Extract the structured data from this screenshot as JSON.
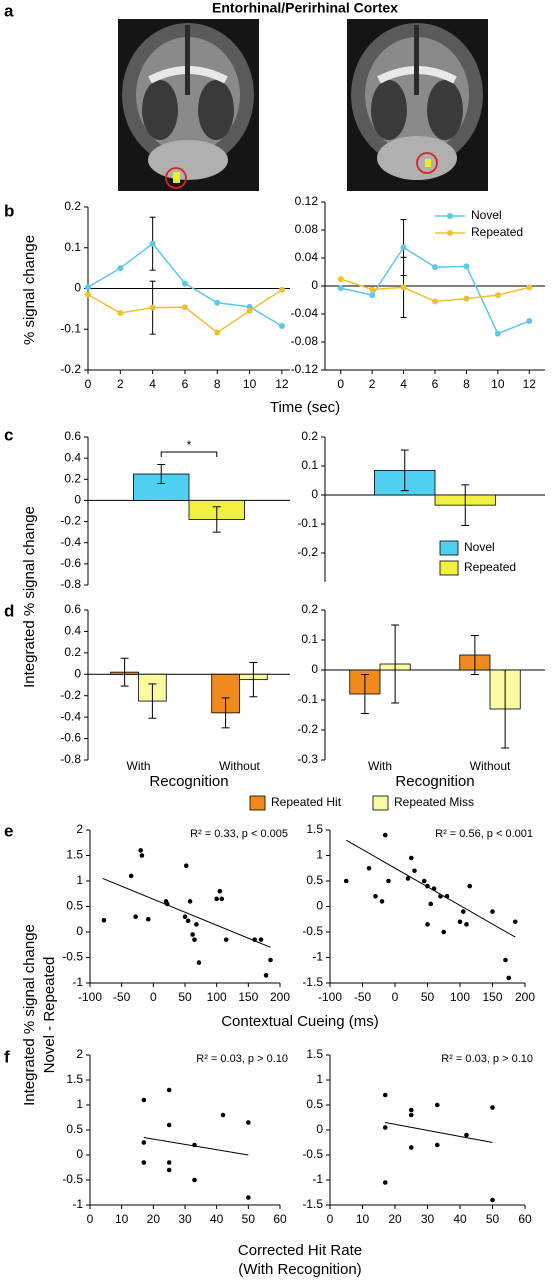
{
  "figure": {
    "title": "Entorhinal/Perirhinal Cortex",
    "panels": [
      "a",
      "b",
      "c",
      "d",
      "e",
      "f"
    ],
    "b_ylabel": "% signal change",
    "b_xlabel": "Time (sec)",
    "cd_ylabel": "Integrated % signal change",
    "ef_ylabel": [
      "Integrated % signal change",
      "Novel - Repeated"
    ],
    "e_xlabel": "Contextual Cueing (ms)",
    "f_xlabel": [
      "Corrected Hit Rate",
      "(With Recognition)"
    ]
  },
  "chart_data": [
    {
      "type": "line",
      "x": [
        0,
        2,
        4,
        6,
        8,
        10,
        12
      ],
      "xlim": [
        0,
        12.5
      ],
      "xticks": [
        0,
        2,
        4,
        6,
        8,
        10,
        12
      ],
      "ylim": [
        -0.2,
        0.2
      ],
      "yticks": [
        -0.2,
        -0.1,
        0,
        0.1,
        0.2
      ],
      "series": [
        {
          "color": "#5bc8e8",
          "values": [
            0.003,
            0.05,
            0.11,
            0.012,
            -0.035,
            -0.045,
            -0.092
          ],
          "errors": [
            null,
            null,
            0.065,
            null,
            null,
            null,
            null
          ]
        },
        {
          "color": "#f0c030",
          "values": [
            -0.015,
            -0.06,
            -0.047,
            -0.046,
            -0.108,
            -0.055,
            -0.003
          ],
          "errors": [
            null,
            null,
            0.065,
            null,
            null,
            null,
            null
          ]
        }
      ]
    },
    {
      "type": "line",
      "x": [
        0,
        2,
        4,
        6,
        8,
        10,
        12
      ],
      "xlim": [
        -1,
        13
      ],
      "xticks": [
        0,
        2,
        4,
        6,
        8,
        10,
        12
      ],
      "ylim": [
        -0.12,
        0.12
      ],
      "yticks": [
        -0.12,
        -0.08,
        -0.04,
        0,
        0.04,
        0.08,
        0.12
      ],
      "legend": "upper right",
      "series": [
        {
          "name": "Novel",
          "color": "#5bc8e8",
          "values": [
            -0.003,
            -0.013,
            0.055,
            0.027,
            0.028,
            -0.068,
            -0.05
          ],
          "errors": [
            null,
            null,
            0.04,
            null,
            null,
            null,
            null
          ]
        },
        {
          "name": "Repeated",
          "color": "#f0c030",
          "values": [
            0.01,
            -0.005,
            -0.002,
            -0.022,
            -0.018,
            -0.013,
            -0.002
          ],
          "errors": [
            null,
            null,
            0.043,
            null,
            null,
            null,
            null
          ]
        }
      ]
    },
    {
      "type": "bar",
      "categories": [
        null
      ],
      "ylim": [
        -0.8,
        0.6
      ],
      "yticks": [
        -0.8,
        -0.6,
        -0.4,
        -0.2,
        0,
        0.2,
        0.4,
        0.6
      ],
      "significance": "*",
      "series": [
        {
          "color": "#4fd0f0",
          "values": [
            0.25
          ],
          "errors": [
            0.09
          ]
        },
        {
          "color": "#f0f040",
          "values": [
            -0.18
          ],
          "errors": [
            0.12
          ]
        }
      ]
    },
    {
      "type": "bar",
      "categories": [
        null
      ],
      "ylim": [
        -0.3,
        0.2
      ],
      "yticks": [
        -0.2,
        -0.1,
        0,
        0.1,
        0.2
      ],
      "legend": "lower right",
      "series": [
        {
          "name": "Novel",
          "color": "#4fd0f0",
          "values": [
            0.085
          ],
          "errors": [
            0.07
          ]
        },
        {
          "name": "Repeated",
          "color": "#f0f040",
          "values": [
            -0.035
          ],
          "errors": [
            0.07
          ]
        }
      ]
    },
    {
      "type": "bar",
      "categories": [
        "With",
        "Without"
      ],
      "xlabel": "Recognition",
      "ylim": [
        -0.8,
        0.6
      ],
      "yticks": [
        -0.8,
        -0.6,
        -0.4,
        -0.2,
        0,
        0.2,
        0.4,
        0.6
      ],
      "legend": "bottom",
      "series": [
        {
          "name": "Repeated Hit",
          "color": "#f08a1c",
          "values": [
            0.02,
            -0.36
          ],
          "errors": [
            0.13,
            0.14
          ]
        },
        {
          "name": "Repeated Miss",
          "color": "#fafaa0",
          "values": [
            -0.25,
            -0.05
          ],
          "errors": [
            0.16,
            0.16
          ]
        }
      ]
    },
    {
      "type": "bar",
      "categories": [
        "With",
        "Without"
      ],
      "xlabel": "Recognition",
      "ylim": [
        -0.3,
        0.2
      ],
      "yticks": [
        -0.3,
        -0.2,
        -0.1,
        0,
        0.1,
        0.2
      ],
      "series": [
        {
          "color": "#f08a1c",
          "values": [
            -0.08,
            0.05
          ],
          "errors": [
            0.065,
            0.065
          ]
        },
        {
          "color": "#fafaa0",
          "values": [
            0.02,
            -0.13
          ],
          "errors": [
            0.13,
            0.13
          ]
        }
      ]
    },
    {
      "type": "scatter",
      "annotation": "R² = 0.33, p < 0.005",
      "xlim": [
        -100,
        200
      ],
      "xticks": [
        -100,
        -50,
        0,
        50,
        100,
        150,
        200
      ],
      "ylim": [
        -1,
        2
      ],
      "yticks": [
        -1,
        -0.5,
        0,
        0.5,
        1,
        1.5,
        2
      ],
      "color": "#000000",
      "x": [
        -78,
        -35,
        -28,
        -20,
        -18,
        -8,
        20,
        22,
        50,
        52,
        55,
        58,
        62,
        65,
        68,
        72,
        100,
        105,
        108,
        115,
        160,
        170,
        178,
        185
      ],
      "values": [
        0.23,
        1.1,
        0.3,
        1.6,
        1.5,
        0.25,
        0.6,
        0.55,
        0.3,
        1.3,
        0.22,
        0.6,
        -0.05,
        -0.15,
        0.15,
        -0.6,
        0.65,
        0.8,
        0.65,
        -0.15,
        -0.15,
        -0.15,
        -0.85,
        -0.55
      ],
      "trend": {
        "x": [
          -80,
          185
        ],
        "y": [
          1.05,
          -0.3
        ]
      }
    },
    {
      "type": "scatter",
      "annotation": "R² = 0.56, p < 0.001",
      "xlim": [
        -100,
        200
      ],
      "xticks": [
        -100,
        -50,
        0,
        50,
        100,
        150,
        200
      ],
      "ylim": [
        -1.5,
        1.5
      ],
      "yticks": [
        -1.5,
        -1,
        -0.5,
        0,
        0.5,
        1,
        1.5
      ],
      "color": "#000000",
      "x": [
        -75,
        -40,
        -30,
        -20,
        -15,
        -10,
        20,
        25,
        30,
        45,
        50,
        50,
        55,
        60,
        70,
        75,
        80,
        100,
        105,
        110,
        115,
        150,
        170,
        175,
        185
      ],
      "values": [
        0.5,
        0.75,
        0.2,
        0.1,
        1.4,
        0.5,
        0.55,
        0.95,
        0.7,
        0.5,
        0.4,
        -0.35,
        0.05,
        0.35,
        0.2,
        -0.5,
        0.2,
        -0.3,
        -0.1,
        -0.35,
        0.4,
        -0.1,
        -1.05,
        -1.4,
        -0.3
      ],
      "trend": {
        "x": [
          -75,
          185
        ],
        "y": [
          1.3,
          -0.6
        ]
      }
    },
    {
      "type": "scatter",
      "annotation": "R² = 0.03, p > 0.10",
      "xlim": [
        0,
        60
      ],
      "xticks": [
        0,
        10,
        20,
        30,
        40,
        50,
        60
      ],
      "ylim": [
        -1,
        2
      ],
      "yticks": [
        -1,
        -0.5,
        0,
        0.5,
        1,
        1.5,
        2
      ],
      "color": "#000000",
      "x": [
        17,
        17,
        17,
        25,
        25,
        25,
        25,
        33,
        33,
        42,
        50,
        50
      ],
      "values": [
        1.1,
        0.25,
        -0.15,
        1.3,
        0.6,
        -0.15,
        -0.3,
        0.2,
        -0.5,
        0.8,
        0.65,
        -0.85
      ],
      "trend": {
        "x": [
          17,
          50
        ],
        "y": [
          0.35,
          0
        ]
      }
    },
    {
      "type": "scatter",
      "annotation": "R² = 0.03, p > 0.10",
      "xlim": [
        0,
        60
      ],
      "xticks": [
        0,
        10,
        20,
        30,
        40,
        50,
        60
      ],
      "ylim": [
        -1.5,
        1.5
      ],
      "yticks": [
        -1.5,
        -1,
        -0.5,
        0,
        0.5,
        1,
        1.5
      ],
      "color": "#000000",
      "x": [
        17,
        17,
        17,
        25,
        25,
        25,
        33,
        33,
        42,
        50,
        50
      ],
      "values": [
        0.7,
        0.05,
        -1.05,
        0.4,
        0.3,
        -0.35,
        0.5,
        -0.3,
        -0.1,
        0.45,
        -1.4
      ],
      "trend": {
        "x": [
          17,
          50
        ],
        "y": [
          0.15,
          -0.25
        ]
      }
    }
  ]
}
